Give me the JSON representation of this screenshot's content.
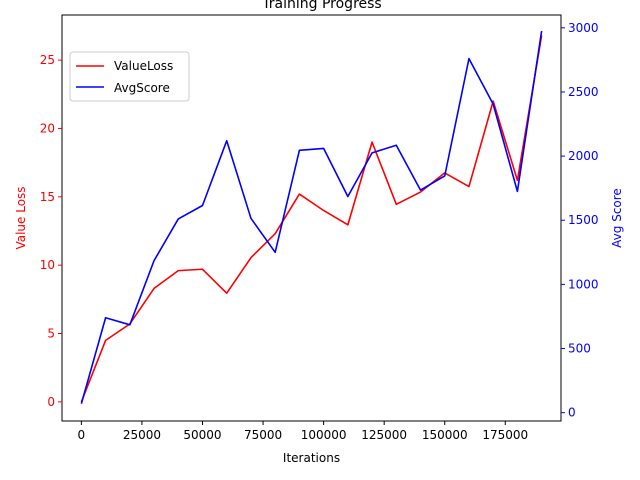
{
  "chart_data": {
    "type": "line",
    "title": "Training Progress",
    "xlabel": "Iterations",
    "ylabel_left": "Value Loss",
    "ylabel_right": "Avg Score",
    "xlim": [
      -8000,
      198000
    ],
    "ylim_left": [
      -1.4,
      28.3
    ],
    "ylim_right": [
      -65,
      3100
    ],
    "x_ticks": [
      0,
      25000,
      50000,
      75000,
      100000,
      125000,
      150000,
      175000
    ],
    "y_left_ticks": [
      0,
      5,
      10,
      15,
      20,
      25
    ],
    "y_right_ticks": [
      0,
      500,
      1000,
      1500,
      2000,
      2500,
      3000
    ],
    "grid": false,
    "legend_position": "upper-left",
    "x": [
      0,
      10000,
      20000,
      30000,
      40000,
      50000,
      60000,
      70000,
      80000,
      90000,
      100000,
      110000,
      120000,
      130000,
      140000,
      150000,
      160000,
      170000,
      180000,
      190000
    ],
    "series": [
      {
        "name": "ValueLoss",
        "axis": "left",
        "color": "#ff0000",
        "values": [
          0.0,
          4.5,
          5.7,
          8.3,
          9.6,
          9.7,
          7.95,
          10.55,
          12.3,
          15.2,
          14.0,
          12.95,
          19.0,
          14.45,
          15.35,
          16.75,
          15.75,
          22.0,
          16.2,
          26.8
        ]
      },
      {
        "name": "AvgScore",
        "axis": "right",
        "color": "#0000ff",
        "values": [
          70,
          740,
          685,
          1185,
          1510,
          1615,
          2120,
          1515,
          1250,
          2045,
          2060,
          1685,
          2025,
          2085,
          1735,
          1845,
          2760,
          2405,
          1725,
          2975
        ]
      }
    ]
  }
}
